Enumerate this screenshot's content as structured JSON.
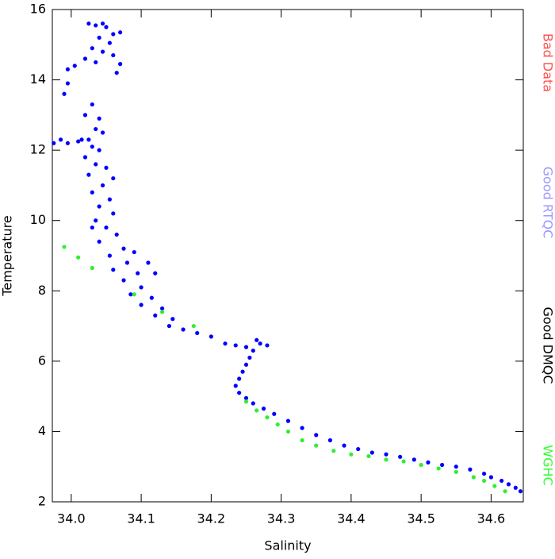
{
  "chart_data": {
    "type": "scatter",
    "x_label": "Salinity",
    "y_label": "Temperature",
    "xlim": [
      33.973,
      34.646
    ],
    "ylim": [
      2,
      16
    ],
    "xticks": [
      {
        "value": 34,
        "label": "34.0"
      },
      34.1,
      34.2,
      34.3,
      34.4,
      34.5,
      34.6
    ],
    "yticks": [
      2,
      4,
      6,
      8,
      10,
      12,
      14,
      16
    ],
    "legend": [
      {
        "text": "Bad Data",
        "color": "#ff5050"
      },
      {
        "text": "Good RTQC",
        "color": "#9a9aff"
      },
      {
        "text": "Good DMQC",
        "color": "#000000"
      },
      {
        "text": "WGHC",
        "color": "#33ff33"
      }
    ],
    "series": [
      {
        "color": "#0000ff",
        "x": [
          34.025,
          34.035,
          34.045,
          34.05,
          34.06,
          34.07,
          34.04,
          34.055,
          34.03,
          34.045,
          34.06,
          34.02,
          34.035,
          34.07,
          34.005,
          33.995,
          34.065,
          33.995,
          33.99,
          34.03,
          34.02,
          34.04,
          34.035,
          34.045,
          34.025,
          34.03,
          34.04,
          34.02,
          34.035,
          34.05,
          34.025,
          34.045,
          34.03,
          34.055,
          34.04,
          34.06,
          34.035,
          34.05,
          34.065,
          34.04,
          34.075,
          34.055,
          34.08,
          34.06,
          34.095,
          34.075,
          34.1,
          34.085,
          34.115,
          34.1,
          34.13,
          34.12,
          34.145,
          34.14,
          34.16,
          34.18,
          34.2,
          34.22,
          34.235,
          34.25,
          34.26,
          34.27,
          34.28,
          34.265,
          34.255,
          34.25,
          34.245,
          34.24,
          34.235,
          34.24,
          34.25,
          34.26,
          34.275,
          34.29,
          34.31,
          34.33,
          34.35,
          34.37,
          34.39,
          34.41,
          34.43,
          34.45,
          34.47,
          34.49,
          34.51,
          34.53,
          34.55,
          34.57,
          34.59,
          34.6,
          34.615,
          34.625,
          34.635,
          34.642,
          33.975,
          33.985,
          33.995,
          34.01,
          34.015,
          34.11,
          34.09,
          34.12,
          34.06,
          34.03
        ],
        "y": [
          15.6,
          15.55,
          15.6,
          15.5,
          15.3,
          15.35,
          15.2,
          15.05,
          14.9,
          14.8,
          14.7,
          14.6,
          14.5,
          14.45,
          14.4,
          14.3,
          14.2,
          13.9,
          13.6,
          13.3,
          13.0,
          12.9,
          12.6,
          12.5,
          12.3,
          12.1,
          12.0,
          11.8,
          11.6,
          11.5,
          11.3,
          11.0,
          10.8,
          10.6,
          10.4,
          10.2,
          10.0,
          9.8,
          9.6,
          9.4,
          9.2,
          9.0,
          8.8,
          8.6,
          8.5,
          8.3,
          8.1,
          7.9,
          7.8,
          7.6,
          7.5,
          7.3,
          7.2,
          7.0,
          6.9,
          6.8,
          6.7,
          6.5,
          6.45,
          6.4,
          6.3,
          6.5,
          6.45,
          6.6,
          6.1,
          5.9,
          5.7,
          5.5,
          5.3,
          5.1,
          4.95,
          4.8,
          4.65,
          4.5,
          4.3,
          4.1,
          3.9,
          3.75,
          3.6,
          3.5,
          3.4,
          3.35,
          3.28,
          3.2,
          3.12,
          3.05,
          3.0,
          2.92,
          2.8,
          2.7,
          2.6,
          2.5,
          2.4,
          2.3,
          12.2,
          12.3,
          12.2,
          12.25,
          12.3,
          8.8,
          9.1,
          8.5,
          11.2,
          9.8
        ]
      },
      {
        "color": "#33ee33",
        "x": [
          33.99,
          34.01,
          34.03,
          34.09,
          34.13,
          34.175,
          34.25,
          34.265,
          34.28,
          34.295,
          34.31,
          34.33,
          34.35,
          34.375,
          34.4,
          34.425,
          34.45,
          34.475,
          34.5,
          34.525,
          34.55,
          34.575,
          34.59,
          34.605,
          34.62
        ],
        "y": [
          9.25,
          8.95,
          8.65,
          7.9,
          7.4,
          7.0,
          4.85,
          4.6,
          4.4,
          4.2,
          4.0,
          3.75,
          3.6,
          3.45,
          3.35,
          3.3,
          3.2,
          3.15,
          3.05,
          2.95,
          2.85,
          2.7,
          2.6,
          2.45,
          2.3
        ]
      }
    ]
  }
}
